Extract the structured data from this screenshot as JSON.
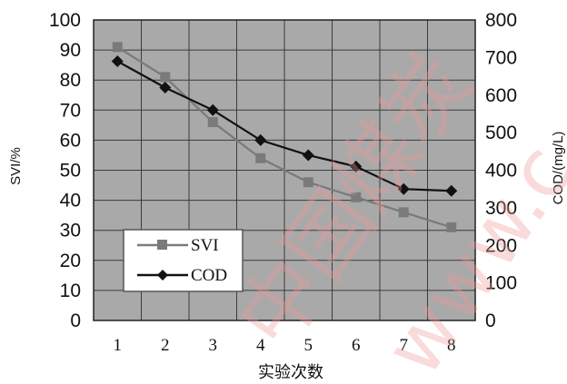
{
  "chart_data": {
    "type": "line",
    "x": [
      1,
      2,
      3,
      4,
      5,
      6,
      7,
      8
    ],
    "xlabel": "实验次数",
    "ylabel_left": "SVI/%",
    "ylabel_right": "COD/(mg/L)",
    "ylim_left": [
      0,
      100
    ],
    "ylim_right": [
      0,
      800
    ],
    "yticks_left": [
      0,
      10,
      20,
      30,
      40,
      50,
      60,
      70,
      80,
      90,
      100
    ],
    "yticks_right": [
      0,
      100,
      200,
      300,
      400,
      500,
      600,
      700,
      800
    ],
    "grid": true,
    "legend_position": "bottom-left",
    "series": [
      {
        "name": "SVI",
        "axis": "left",
        "marker": "square",
        "color": "#7a7a7a",
        "values": [
          91,
          81,
          66,
          54,
          46,
          41,
          36,
          31
        ]
      },
      {
        "name": "COD",
        "axis": "right",
        "marker": "diamond",
        "color": "#111111",
        "values": [
          690,
          620,
          560,
          480,
          440,
          410,
          350,
          345
        ]
      }
    ],
    "plot_background": "#a9a9a9",
    "grid_color": "#3a3a3a"
  },
  "watermark": {
    "text_1": "中国煤炭",
    "text_2": "www.c"
  }
}
